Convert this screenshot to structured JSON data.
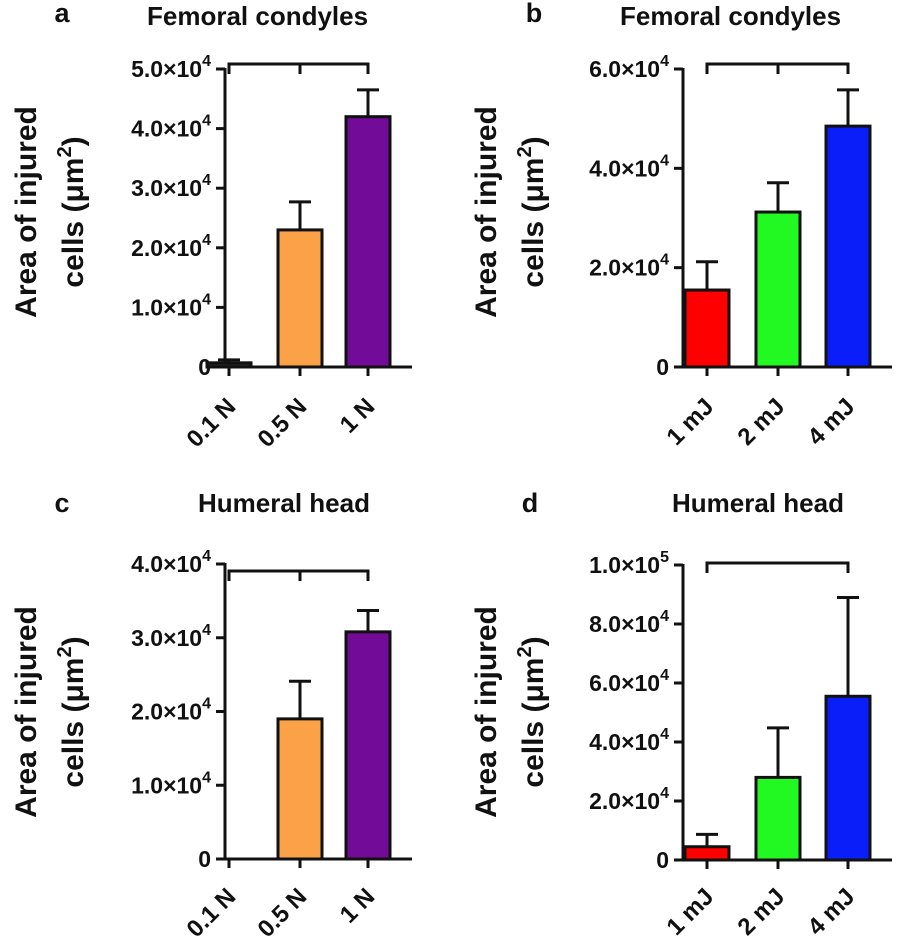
{
  "chart_data": [
    {
      "type": "bar",
      "panel": "a",
      "title": "Femoral condyles",
      "ylabel_line1": "Area of injured",
      "ylabel_line2": "cells (μm",
      "ylabel_sup": "2",
      "ylabel_close": ")",
      "categories": [
        "0.1 N",
        "0.5 N",
        "1 N"
      ],
      "values": [
        700,
        23000,
        42000
      ],
      "errors": [
        500,
        4700,
        4500
      ],
      "colors": [
        "#222222",
        "#FBA147",
        "#720B98"
      ],
      "ylim": [
        0,
        50000
      ],
      "yticks": [
        {
          "value": 0,
          "mant": "0",
          "exp": ""
        },
        {
          "value": 10000,
          "mant": "1.0×10",
          "exp": "4"
        },
        {
          "value": 20000,
          "mant": "2.0×10",
          "exp": "4"
        },
        {
          "value": 30000,
          "mant": "3.0×10",
          "exp": "4"
        },
        {
          "value": 40000,
          "mant": "4.0×10",
          "exp": "4"
        },
        {
          "value": 50000,
          "mant": "5.0×10",
          "exp": "4"
        }
      ],
      "bracket": {
        "from": 0,
        "to": 2,
        "mid": 1,
        "level": 50000
      }
    },
    {
      "type": "bar",
      "panel": "b",
      "title": "Femoral condyles",
      "ylabel_line1": "Area of injured",
      "ylabel_line2": "cells (μm",
      "ylabel_sup": "2",
      "ylabel_close": ")",
      "categories": [
        "1 mJ",
        "2 mJ",
        "4 mJ"
      ],
      "values": [
        15500,
        31200,
        48500
      ],
      "errors": [
        5700,
        5900,
        7300
      ],
      "colors": [
        "#FF0000",
        "#22F922",
        "#0A1EFA"
      ],
      "ylim": [
        0,
        60000
      ],
      "yticks": [
        {
          "value": 0,
          "mant": "0",
          "exp": ""
        },
        {
          "value": 20000,
          "mant": "2.0×10",
          "exp": "4"
        },
        {
          "value": 40000,
          "mant": "4.0×10",
          "exp": "4"
        },
        {
          "value": 60000,
          "mant": "6.0×10",
          "exp": "4"
        }
      ],
      "bracket": {
        "from": 0,
        "to": 2,
        "mid": 1,
        "level": 60000
      }
    },
    {
      "type": "bar",
      "panel": "c",
      "title": "Humeral head",
      "ylabel_line1": "Area of injured",
      "ylabel_line2": "cells (μm",
      "ylabel_sup": "2",
      "ylabel_close": ")",
      "categories": [
        "0.1 N",
        "0.5 N",
        "1 N"
      ],
      "values": [
        0,
        19000,
        30800
      ],
      "errors": [
        0,
        5100,
        2900
      ],
      "colors": [
        "#222222",
        "#FBA147",
        "#720B98"
      ],
      "ylim": [
        0,
        40000
      ],
      "yticks": [
        {
          "value": 0,
          "mant": "0",
          "exp": ""
        },
        {
          "value": 10000,
          "mant": "1.0×10",
          "exp": "4"
        },
        {
          "value": 20000,
          "mant": "2.0×10",
          "exp": "4"
        },
        {
          "value": 30000,
          "mant": "3.0×10",
          "exp": "4"
        },
        {
          "value": 40000,
          "mant": "4.0×10",
          "exp": "4"
        }
      ],
      "bracket": {
        "from": 0,
        "to": 2,
        "mid": 1,
        "level": 38500
      }
    },
    {
      "type": "bar",
      "panel": "d",
      "title": "Humeral head",
      "ylabel_line1": "Area of injured",
      "ylabel_line2": "cells (μm",
      "ylabel_sup": "2",
      "ylabel_close": ")",
      "categories": [
        "1 mJ",
        "2 mJ",
        "4 mJ"
      ],
      "values": [
        4500,
        28000,
        55500
      ],
      "errors": [
        4200,
        16800,
        33500
      ],
      "colors": [
        "#FF0000",
        "#22F922",
        "#0A1EFA"
      ],
      "ylim": [
        0,
        100000
      ],
      "yticks": [
        {
          "value": 0,
          "mant": "0",
          "exp": ""
        },
        {
          "value": 20000,
          "mant": "2.0×10",
          "exp": "4"
        },
        {
          "value": 40000,
          "mant": "4.0×10",
          "exp": "4"
        },
        {
          "value": 60000,
          "mant": "6.0×10",
          "exp": "4"
        },
        {
          "value": 80000,
          "mant": "8.0×10",
          "exp": "4"
        },
        {
          "value": 100000,
          "mant": "1.0×10",
          "exp": "5"
        }
      ],
      "bracket": {
        "from": 0,
        "to": 2,
        "mid": null,
        "level": 97000
      }
    }
  ]
}
